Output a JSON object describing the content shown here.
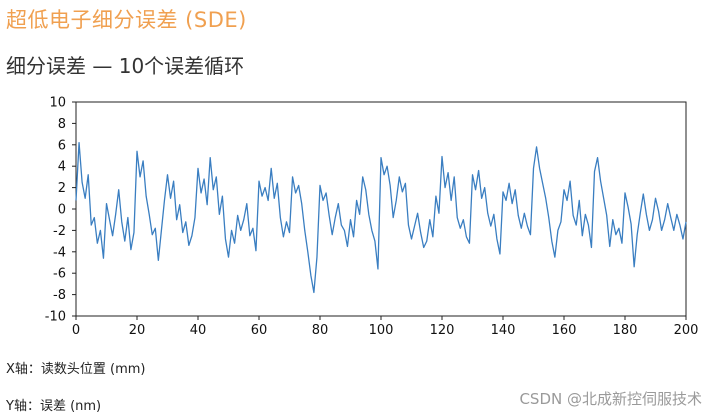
{
  "header": {
    "title": "超低电子细分误差 (SDE)",
    "subtitle": "细分误差 — 10个误差循环"
  },
  "notes": {
    "x_axis": "X轴：读数头位置 (mm)",
    "y_axis": "Y轴：误差 (nm)"
  },
  "watermark": "CSDN @北成新控伺服技术",
  "colors": {
    "title": "#f0a050",
    "line": "#3a7ec1",
    "grid": "#d0d0d0"
  },
  "chart_data": {
    "type": "line",
    "xlabel": "",
    "ylabel": "",
    "xlim": [
      0,
      200
    ],
    "ylim": [
      -10,
      10
    ],
    "x_ticks": [
      0,
      20,
      40,
      60,
      80,
      100,
      120,
      140,
      160,
      180,
      200
    ],
    "y_ticks": [
      10,
      8,
      6,
      4,
      2,
      0,
      -2,
      -4,
      -6,
      -8,
      -10
    ],
    "grid": false,
    "legend": "none",
    "series": [
      {
        "x": [
          0,
          1,
          2,
          3,
          4,
          5,
          6,
          7,
          8,
          9,
          10,
          11,
          12,
          13,
          14,
          15,
          16,
          17,
          18,
          19,
          20,
          21,
          22,
          23,
          24,
          25,
          26,
          27,
          28,
          29,
          30,
          31,
          32,
          33,
          34,
          35,
          36,
          37,
          38,
          39,
          40,
          41,
          42,
          43,
          44,
          45,
          46,
          47,
          48,
          49,
          50,
          51,
          52,
          53,
          54,
          55,
          56,
          57,
          58,
          59,
          60,
          61,
          62,
          63,
          64,
          65,
          66,
          67,
          68,
          69,
          70,
          71,
          72,
          73,
          74,
          75,
          76,
          77,
          78,
          79,
          80,
          81,
          82,
          83,
          84,
          85,
          86,
          87,
          88,
          89,
          90,
          91,
          92,
          93,
          94,
          95,
          96,
          97,
          98,
          99,
          100,
          101,
          102,
          103,
          104,
          105,
          106,
          107,
          108,
          109,
          110,
          111,
          112,
          113,
          114,
          115,
          116,
          117,
          118,
          119,
          120,
          121,
          122,
          123,
          124,
          125,
          126,
          127,
          128,
          129,
          130,
          131,
          132,
          133,
          134,
          135,
          136,
          137,
          138,
          139,
          140,
          141,
          142,
          143,
          144,
          145,
          146,
          147,
          148,
          149,
          150,
          151,
          152,
          153,
          154,
          155,
          156,
          157,
          158,
          159,
          160,
          161,
          162,
          163,
          164,
          165,
          166,
          167,
          168,
          169,
          170,
          171,
          172,
          173,
          174,
          175,
          176,
          177,
          178,
          179,
          180,
          181,
          182,
          183,
          184,
          185,
          186,
          187,
          188,
          189,
          190,
          191,
          192,
          193,
          194,
          195,
          196,
          197,
          198,
          199,
          200
        ],
        "values": [
          0.8,
          6.2,
          2.5,
          1.0,
          3.2,
          -1.5,
          -0.8,
          -3.2,
          -2.0,
          -4.6,
          0.5,
          -1.0,
          -2.5,
          -0.5,
          1.8,
          -1.2,
          -3.0,
          -0.8,
          -3.8,
          -2.2,
          5.4,
          3.0,
          4.5,
          1.2,
          -0.5,
          -2.4,
          -1.8,
          -4.8,
          -2.0,
          0.8,
          3.2,
          1.0,
          2.6,
          -1.0,
          0.4,
          -2.2,
          -1.2,
          -3.4,
          -2.5,
          -0.8,
          3.8,
          1.5,
          2.8,
          0.4,
          4.8,
          1.8,
          3.0,
          -0.5,
          1.2,
          -2.8,
          -4.5,
          -2.0,
          -3.2,
          -0.6,
          -2.0,
          -1.0,
          0.5,
          -2.5,
          -1.8,
          -3.9,
          2.6,
          1.2,
          2.0,
          0.8,
          3.8,
          1.0,
          2.4,
          -0.8,
          -2.6,
          -1.2,
          -2.2,
          3.0,
          1.5,
          2.2,
          0.5,
          -2.0,
          -4.0,
          -6.2,
          -7.8,
          -4.5,
          2.2,
          0.8,
          1.5,
          -0.6,
          -2.4,
          -0.8,
          0.5,
          -1.5,
          -2.0,
          -3.5,
          -1.0,
          -2.6,
          0.8,
          -0.5,
          3.0,
          1.8,
          -0.5,
          -2.0,
          -3.0,
          -5.6,
          4.8,
          3.2,
          4.0,
          2.2,
          -0.8,
          0.8,
          3.0,
          1.6,
          2.4,
          -1.5,
          -2.8,
          -1.6,
          -0.4,
          -2.2,
          -3.6,
          -3.0,
          -1.0,
          -2.6,
          1.2,
          -0.4,
          4.9,
          2.0,
          3.4,
          0.8,
          3.0,
          -0.8,
          -1.8,
          -1.0,
          -2.6,
          -3.2,
          3.2,
          1.8,
          3.6,
          1.0,
          2.0,
          -0.4,
          -1.6,
          -0.5,
          -2.8,
          -4.2,
          1.6,
          0.8,
          2.4,
          0.5,
          1.8,
          -0.6,
          -1.8,
          -0.4,
          -1.6,
          -2.4,
          3.8,
          5.8,
          3.8,
          2.4,
          1.0,
          -0.8,
          -3.0,
          -4.5,
          -2.0,
          -1.2,
          1.8,
          0.8,
          2.6,
          -0.6,
          -1.5,
          0.8,
          -2.5,
          -0.5,
          -1.5,
          -3.6,
          3.5,
          4.8,
          2.6,
          1.0,
          -0.6,
          -3.5,
          -1.0,
          -2.4,
          -1.8,
          -3.2,
          1.5,
          0.2,
          -1.4,
          -5.4,
          -2.4,
          -0.4,
          1.4,
          -0.5,
          -2.0,
          -1.0,
          1.0,
          -0.2,
          -2.0,
          -1.0,
          0.5,
          -0.8,
          -2.0,
          -0.5,
          -1.5,
          -2.8,
          -1.2
        ]
      }
    ]
  }
}
